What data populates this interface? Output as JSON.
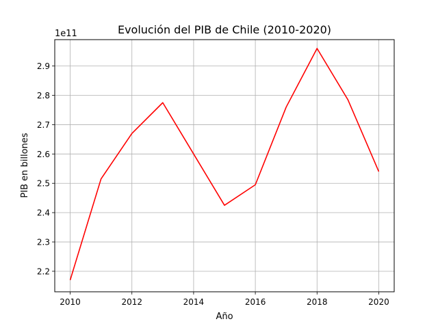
{
  "chart_data": {
    "type": "line",
    "title": "Evolución del PIB de Chile (2010-2020)",
    "xlabel": "Año",
    "ylabel": "PIB en billones",
    "y_offset_label": "1e11",
    "x": [
      2010,
      2011,
      2012,
      2013,
      2014,
      2015,
      2016,
      2017,
      2018,
      2019,
      2020
    ],
    "series": [
      {
        "values": [
          217000000000.0,
          251500000000.0,
          267000000000.0,
          277500000000.0,
          260000000000.0,
          242500000000.0,
          249500000000.0,
          276000000000.0,
          296000000000.0,
          278500000000.0,
          254000000000.0
        ],
        "color": "#ff0000"
      }
    ],
    "xlim": [
      2009.5,
      2020.5
    ],
    "ylim": [
      213000000000.0,
      299000000000.0
    ],
    "x_ticks": [
      2010,
      2012,
      2014,
      2016,
      2018,
      2020
    ],
    "x_tick_labels": [
      "2010",
      "2012",
      "2014",
      "2016",
      "2018",
      "2020"
    ],
    "y_ticks": [
      220000000000.0,
      230000000000.0,
      240000000000.0,
      250000000000.0,
      260000000000.0,
      270000000000.0,
      280000000000.0,
      290000000000.0
    ],
    "y_tick_labels": [
      "2.2",
      "2.3",
      "2.4",
      "2.5",
      "2.6",
      "2.7",
      "2.8",
      "2.9"
    ],
    "grid": true,
    "legend": "none"
  }
}
